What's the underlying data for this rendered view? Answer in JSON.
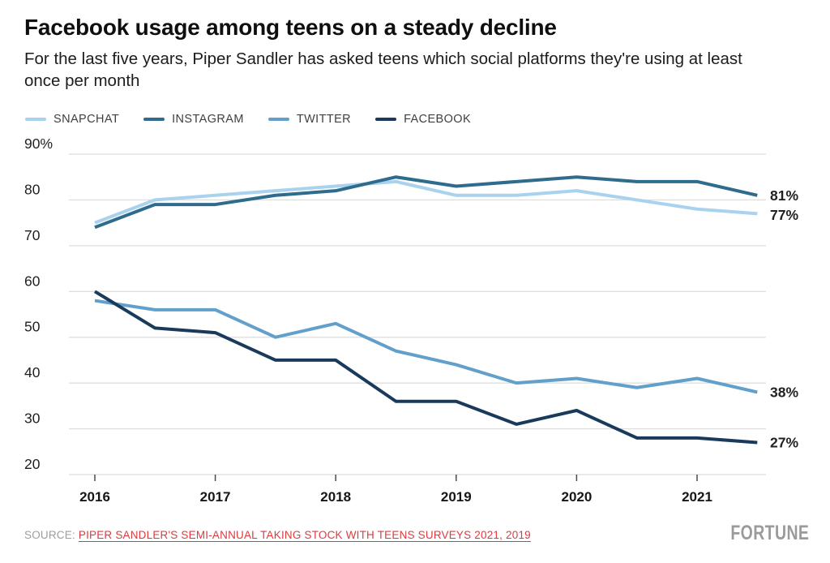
{
  "header": {
    "title": "Facebook usage among teens on a steady decline",
    "subtitle": "For the last five years, Piper Sandler has asked teens which social platforms they're using at least once per month"
  },
  "legend": [
    {
      "label": "SNAPCHAT",
      "color": "#a8d2ee"
    },
    {
      "label": "INSTAGRAM",
      "color": "#2e6b8d"
    },
    {
      "label": "TWITTER",
      "color": "#62a0cb"
    },
    {
      "label": "FACEBOOK",
      "color": "#1a3a5c"
    }
  ],
  "chart_data": {
    "type": "line",
    "title": "Facebook usage among teens on a steady decline",
    "x": [
      2016,
      2016.5,
      2017,
      2017.5,
      2018,
      2018.5,
      2019,
      2019.5,
      2020,
      2020.5,
      2021,
      2021.5
    ],
    "x_tick_years": [
      2016,
      2017,
      2018,
      2019,
      2020,
      2021
    ],
    "x_tick_labels": [
      "2016",
      "2017",
      "2018",
      "2019",
      "2020",
      "2021"
    ],
    "y_tick_values": [
      90,
      80,
      70,
      60,
      50,
      40,
      30,
      20
    ],
    "y_tick_labels": [
      "90%",
      "80",
      "70",
      "60",
      "50",
      "40",
      "30",
      "20"
    ],
    "ylim": [
      20,
      90
    ],
    "grid": "horizontal",
    "legend_position": "top-left",
    "series": [
      {
        "name": "SNAPCHAT",
        "color": "#a8d2ee",
        "values": [
          75,
          80,
          81,
          82,
          83,
          84,
          81,
          81,
          82,
          80,
          78,
          77
        ],
        "end_label": "77%"
      },
      {
        "name": "TWITTER",
        "color": "#62a0cb",
        "values": [
          58,
          56,
          56,
          50,
          53,
          47,
          44,
          40,
          41,
          39,
          41,
          38
        ],
        "end_label": "38%"
      },
      {
        "name": "INSTAGRAM",
        "color": "#2e6b8d",
        "values": [
          74,
          79,
          79,
          81,
          82,
          85,
          83,
          84,
          85,
          84,
          84,
          81
        ],
        "end_label": "81%"
      },
      {
        "name": "FACEBOOK",
        "color": "#1a3a5c",
        "values": [
          60,
          52,
          51,
          45,
          45,
          36,
          36,
          31,
          34,
          28,
          28,
          27
        ],
        "end_label": "27%"
      }
    ]
  },
  "footer": {
    "source_prefix": "SOURCE: ",
    "source_link": "PIPER SANDLER'S SEMI-ANNUAL TAKING STOCK WITH TEENS SURVEYS 2021, 2019",
    "brand": "FORTUNE"
  }
}
